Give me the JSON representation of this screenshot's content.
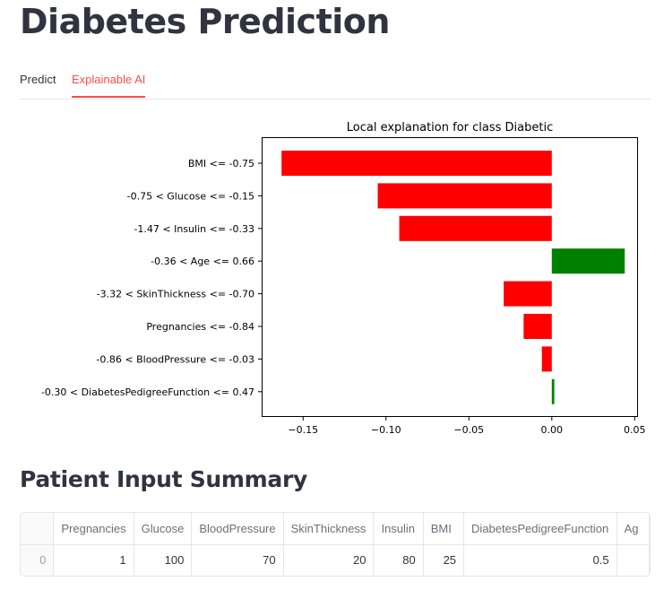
{
  "page": {
    "title": "Diabetes Prediction"
  },
  "tabs": [
    {
      "label": "Predict",
      "active": false
    },
    {
      "label": "Explainable AI",
      "active": true
    }
  ],
  "colors": {
    "accent": "#ff4b4b",
    "negative_bar": "#ff0000",
    "positive_bar": "#008000"
  },
  "chart_data": {
    "type": "bar",
    "orientation": "horizontal",
    "title": "Local explanation for class Diabetic",
    "xlabel": "",
    "ylabel": "",
    "xlim": [
      -0.175,
      0.052
    ],
    "xticks": [
      -0.15,
      -0.1,
      -0.05,
      0.0,
      0.05
    ],
    "xtick_labels": [
      "−0.15",
      "−0.10",
      "−0.05",
      "0.00",
      "0.05"
    ],
    "grid": false,
    "categories": [
      "BMI <= -0.75",
      "-0.75 < Glucose <= -0.15",
      "-1.47 < Insulin <= -0.33",
      "-0.36 < Age <= 0.66",
      "-3.32 < SkinThickness <= -0.70",
      "Pregnancies <= -0.84",
      "-0.86 < BloodPressure <= -0.03",
      "-0.30 < DiabetesPedigreeFunction <= 0.47"
    ],
    "values": [
      -0.163,
      -0.105,
      -0.092,
      0.044,
      -0.029,
      -0.017,
      -0.006,
      0.0015
    ]
  },
  "summary": {
    "title": "Patient Input Summary",
    "columns": [
      "",
      "Pregnancies",
      "Glucose",
      "BloodPressure",
      "SkinThickness",
      "Insulin",
      "BMI",
      "DiabetesPedigreeFunction",
      "Ag"
    ],
    "rows": [
      [
        "0",
        "1",
        "100",
        "70",
        "20",
        "80",
        "25",
        "0.5",
        ""
      ]
    ]
  }
}
